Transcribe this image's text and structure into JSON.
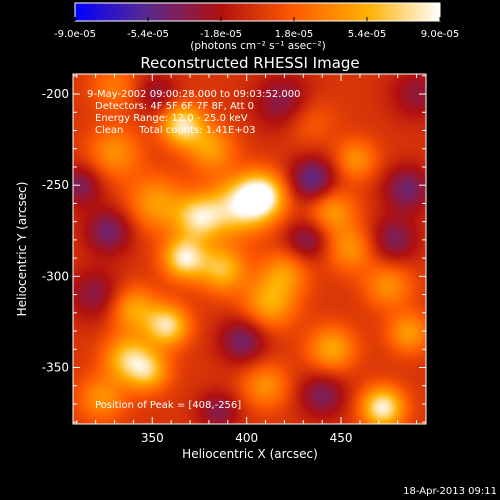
{
  "colorbar": {
    "tick_labels": [
      "-9.0e-05",
      "-5.4e-05",
      "-1.8e-05",
      "1.8e-05",
      "5.4e-05",
      "9.0e-05"
    ],
    "tick_values": [
      -9e-05,
      -5.4e-05,
      -1.8e-05,
      1.8e-05,
      5.4e-05,
      9e-05
    ],
    "range": [
      -9e-05,
      9e-05
    ],
    "unit_label": "(photons cm⁻² s⁻¹ asec⁻²)",
    "colors": [
      "#0000ff",
      "#5b2a8c",
      "#b01010",
      "#ff5a00",
      "#ffb000",
      "#ffffff"
    ]
  },
  "chart_data": {
    "type": "heatmap",
    "title": "Reconstructed RHESSI Image",
    "xlabel": "Heliocentric X (arcsec)",
    "ylabel": "Heliocentric Y (arcsec)",
    "xlim": [
      308,
      495
    ],
    "ylim": [
      -381,
      -189
    ],
    "x_ticks": [
      350,
      400,
      450
    ],
    "y_ticks": [
      -200,
      -250,
      -300,
      -350
    ],
    "x_tick_labels": [
      "350",
      "400",
      "450"
    ],
    "y_tick_labels": [
      "-200",
      "-250",
      "-300",
      "-350"
    ],
    "info_lines": [
      "9-May-2002 09:00:28.000 to 09:03:52.000",
      "Detectors: 4F 5F 6F 7F 8F, Att 0",
      "Energy Range: 12.0 - 25.0 keV",
      "Clean     Total counts: 1.41E+03"
    ],
    "peak_text": "Position of Peak = [408,-256]",
    "peak": [
      408,
      -256
    ],
    "sources": [
      {
        "x": 408,
        "y": -256,
        "amp": 9e-05,
        "sigma": 9
      },
      {
        "x": 395,
        "y": -262,
        "amp": 6.5e-05,
        "sigma": 11
      },
      {
        "x": 375,
        "y": -268,
        "amp": 7e-05,
        "sigma": 9
      },
      {
        "x": 352,
        "y": -260,
        "amp": 4.5e-05,
        "sigma": 11
      },
      {
        "x": 366,
        "y": -217,
        "amp": 7.8e-05,
        "sigma": 8
      },
      {
        "x": 381,
        "y": -230,
        "amp": 4.5e-05,
        "sigma": 9
      },
      {
        "x": 330,
        "y": -232,
        "amp": 4e-05,
        "sigma": 10
      },
      {
        "x": 367,
        "y": -290,
        "amp": 8e-05,
        "sigma": 8
      },
      {
        "x": 387,
        "y": -296,
        "amp": 6e-05,
        "sigma": 9
      },
      {
        "x": 340,
        "y": -318,
        "amp": 5e-05,
        "sigma": 9
      },
      {
        "x": 358,
        "y": -327,
        "amp": 7.5e-05,
        "sigma": 8
      },
      {
        "x": 337,
        "y": -345,
        "amp": 6e-05,
        "sigma": 9
      },
      {
        "x": 348,
        "y": -352,
        "amp": 5.5e-05,
        "sigma": 8
      },
      {
        "x": 323,
        "y": -367,
        "amp": 4e-05,
        "sigma": 9
      },
      {
        "x": 412,
        "y": -315,
        "amp": 5e-05,
        "sigma": 10
      },
      {
        "x": 420,
        "y": -298,
        "amp": 4e-05,
        "sigma": 9
      },
      {
        "x": 445,
        "y": -264,
        "amp": 4.5e-05,
        "sigma": 9
      },
      {
        "x": 458,
        "y": -236,
        "amp": 4e-05,
        "sigma": 8
      },
      {
        "x": 455,
        "y": -285,
        "amp": 4e-05,
        "sigma": 9
      },
      {
        "x": 445,
        "y": -340,
        "amp": 5e-05,
        "sigma": 9
      },
      {
        "x": 472,
        "y": -372,
        "amp": 8.5e-05,
        "sigma": 8
      },
      {
        "x": 486,
        "y": -331,
        "amp": 4.5e-05,
        "sigma": 8
      },
      {
        "x": 475,
        "y": -305,
        "amp": 4e-05,
        "sigma": 9
      },
      {
        "x": 410,
        "y": -360,
        "amp": 4e-05,
        "sigma": 9
      },
      {
        "x": 432,
        "y": -214,
        "amp": 2.5e-05,
        "sigma": 10
      },
      {
        "x": 330,
        "y": -196,
        "amp": 3e-05,
        "sigma": 9
      },
      {
        "x": 435,
        "y": -247,
        "amp": -5.5e-05,
        "sigma": 9
      },
      {
        "x": 485,
        "y": -252,
        "amp": -4.5e-05,
        "sigma": 9
      },
      {
        "x": 420,
        "y": -205,
        "amp": -4e-05,
        "sigma": 11
      },
      {
        "x": 327,
        "y": -275,
        "amp": -4.5e-05,
        "sigma": 9
      },
      {
        "x": 320,
        "y": -310,
        "amp": -3.5e-05,
        "sigma": 10
      },
      {
        "x": 432,
        "y": -280,
        "amp": -4e-05,
        "sigma": 8
      },
      {
        "x": 478,
        "y": -280,
        "amp": -4e-05,
        "sigma": 9
      },
      {
        "x": 398,
        "y": -335,
        "amp": -4.5e-05,
        "sigma": 9
      },
      {
        "x": 440,
        "y": -365,
        "amp": -4e-05,
        "sigma": 9
      },
      {
        "x": 385,
        "y": -374,
        "amp": -3.5e-05,
        "sigma": 8
      },
      {
        "x": 312,
        "y": -250,
        "amp": -4e-05,
        "sigma": 8
      },
      {
        "x": 490,
        "y": -200,
        "amp": -3e-05,
        "sigma": 10
      },
      {
        "x": 352,
        "y": -200,
        "amp": -3e-05,
        "sigma": 8
      }
    ]
  },
  "footer": {
    "timestamp": "18-Apr-2013 09:11"
  }
}
